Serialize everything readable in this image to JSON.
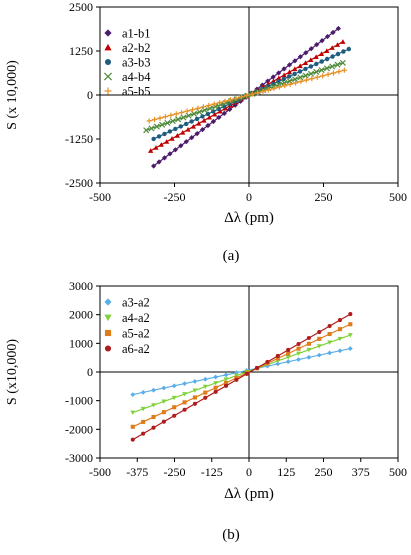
{
  "chart_data": [
    {
      "type": "scatter",
      "panel_label": "(a)",
      "xlabel": "Δλ (pm)",
      "ylabel": "S (x 10,000)",
      "xlim": [
        -500,
        500
      ],
      "ylim": [
        -2500,
        2500
      ],
      "xticks": [
        -500,
        -250,
        0,
        250,
        500
      ],
      "xtick_labels": [
        "-500",
        "-250",
        "0",
        "250",
        "500"
      ],
      "yticks": [
        -2500,
        -1250,
        0,
        1250,
        2500
      ],
      "ytick_labels": [
        "-2500",
        "-1250",
        "0",
        "1250",
        "2500"
      ],
      "grid": false,
      "legend_position": "top-left",
      "series": [
        {
          "name": "a1-b1",
          "marker": "diamond",
          "color": "#4b1c6b",
          "x_range": [
            -320,
            300
          ],
          "slope": 6.3,
          "intercept": 0
        },
        {
          "name": "a2-b2",
          "marker": "triangle",
          "color": "#c00000",
          "x_range": [
            -330,
            315
          ],
          "slope": 4.8,
          "intercept": 0
        },
        {
          "name": "a3-b3",
          "marker": "circle",
          "color": "#1f5c80",
          "x_range": [
            -320,
            335
          ],
          "slope": 3.9,
          "intercept": 0
        },
        {
          "name": "a4-b4",
          "marker": "x",
          "color": "#4e8a3a",
          "x_range": [
            -345,
            315
          ],
          "slope": 2.9,
          "intercept": 0
        },
        {
          "name": "a5-b5",
          "marker": "plus",
          "color": "#e8922a",
          "x_range": [
            -335,
            320
          ],
          "slope": 2.2,
          "intercept": 0
        }
      ]
    },
    {
      "type": "scatter",
      "panel_label": "(b)",
      "xlabel": "Δλ (pm)",
      "ylabel": "S (x10,000)",
      "xlim": [
        -500,
        500
      ],
      "ylim": [
        -3000,
        3000
      ],
      "xticks": [
        -500,
        -375,
        -250,
        -125,
        0,
        125,
        250,
        375,
        500
      ],
      "xtick_labels": [
        "-500",
        "-375",
        "-250",
        "-125",
        "0",
        "125",
        "250",
        "375",
        "500"
      ],
      "yticks": [
        -3000,
        -2000,
        -1000,
        0,
        1000,
        2000,
        3000
      ],
      "ytick_labels": [
        "-3000",
        "-2000",
        "-1000",
        "0",
        "1000",
        "2000",
        "3000"
      ],
      "grid": false,
      "legend_position": "top-left",
      "series": [
        {
          "name": "a3-a2",
          "marker": "diamond",
          "color": "#5aaee8",
          "x_range": [
            -390,
            340
          ],
          "slope": 2.2,
          "intercept": 70
        },
        {
          "name": "a4-a2",
          "marker": "triangle-down",
          "color": "#7ed23a",
          "x_range": [
            -390,
            340
          ],
          "slope": 3.7,
          "intercept": 30
        },
        {
          "name": "a5-a2",
          "marker": "square",
          "color": "#e07b1a",
          "x_range": [
            -390,
            340
          ],
          "slope": 4.9,
          "intercept": 0
        },
        {
          "name": "a6-a2",
          "marker": "circle",
          "color": "#b01c1c",
          "x_range": [
            -390,
            340
          ],
          "slope": 6.0,
          "intercept": -20
        }
      ]
    }
  ]
}
